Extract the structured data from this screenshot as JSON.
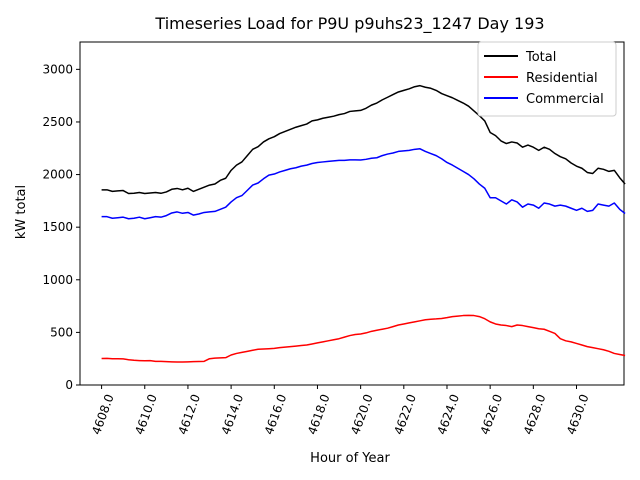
{
  "chart_data": {
    "type": "line",
    "title": "Timeseries Load for P9U p9uhs23_1247  Day 193",
    "xlabel": "Hour of Year",
    "ylabel": "kW total",
    "xlim": [
      4607.0,
      4632.2
    ],
    "ylim": [
      0,
      3260
    ],
    "xticks": [
      4608,
      4610,
      4612,
      4614,
      4616,
      4618,
      4620,
      4622,
      4624,
      4626,
      4628,
      4630
    ],
    "xtick_labels": [
      "4608.0",
      "4610.0",
      "4612.0",
      "4614.0",
      "4616.0",
      "4618.0",
      "4620.0",
      "4622.0",
      "4624.0",
      "4626.0",
      "4628.0",
      "4630.0"
    ],
    "yticks": [
      0,
      500,
      1000,
      1500,
      2000,
      2500,
      3000
    ],
    "ytick_labels": [
      "0",
      "500",
      "1000",
      "1500",
      "2000",
      "2500",
      "3000"
    ],
    "legend_position": "top-right",
    "x_start": 4608.0,
    "x_step": 0.25,
    "series": [
      {
        "name": "Total",
        "color": "#000000",
        "values": [
          1855,
          1855,
          1840,
          1845,
          1848,
          1820,
          1822,
          1830,
          1820,
          1825,
          1830,
          1822,
          1835,
          1860,
          1868,
          1855,
          1870,
          1840,
          1860,
          1880,
          1900,
          1910,
          1945,
          1965,
          2040,
          2090,
          2120,
          2180,
          2240,
          2265,
          2310,
          2340,
          2360,
          2390,
          2410,
          2430,
          2450,
          2465,
          2480,
          2510,
          2520,
          2535,
          2545,
          2555,
          2570,
          2580,
          2600,
          2605,
          2610,
          2630,
          2660,
          2680,
          2710,
          2735,
          2760,
          2785,
          2800,
          2815,
          2835,
          2845,
          2830,
          2820,
          2800,
          2770,
          2750,
          2730,
          2705,
          2680,
          2650,
          2605,
          2560,
          2510,
          2400,
          2370,
          2320,
          2295,
          2310,
          2300,
          2260,
          2280,
          2260,
          2230,
          2260,
          2240,
          2200,
          2170,
          2150,
          2110,
          2080,
          2060,
          2020,
          2010,
          2060,
          2050,
          2030,
          2040,
          1970,
          1910
        ]
      },
      {
        "name": "Residential",
        "color": "#ff0000",
        "values": [
          252,
          253,
          250,
          250,
          248,
          240,
          235,
          232,
          230,
          232,
          225,
          225,
          222,
          220,
          218,
          218,
          220,
          222,
          223,
          225,
          250,
          255,
          258,
          260,
          285,
          300,
          310,
          320,
          330,
          340,
          342,
          345,
          348,
          355,
          360,
          365,
          370,
          375,
          380,
          390,
          400,
          410,
          420,
          430,
          440,
          455,
          470,
          480,
          485,
          495,
          510,
          520,
          530,
          540,
          555,
          570,
          580,
          590,
          600,
          610,
          620,
          625,
          628,
          632,
          640,
          650,
          655,
          660,
          662,
          660,
          650,
          630,
          600,
          580,
          570,
          565,
          555,
          570,
          565,
          555,
          545,
          535,
          530,
          510,
          490,
          440,
          420,
          410,
          395,
          380,
          365,
          355,
          345,
          335,
          320,
          300,
          290,
          280
        ]
      },
      {
        "name": "Commercial",
        "color": "#0000ff",
        "values": [
          1600,
          1600,
          1585,
          1590,
          1595,
          1580,
          1585,
          1595,
          1580,
          1590,
          1600,
          1595,
          1610,
          1635,
          1645,
          1632,
          1640,
          1615,
          1625,
          1640,
          1645,
          1650,
          1670,
          1690,
          1740,
          1780,
          1800,
          1850,
          1900,
          1920,
          1960,
          1995,
          2005,
          2025,
          2040,
          2055,
          2065,
          2080,
          2090,
          2105,
          2115,
          2120,
          2125,
          2130,
          2135,
          2135,
          2140,
          2140,
          2138,
          2145,
          2155,
          2160,
          2180,
          2195,
          2205,
          2220,
          2225,
          2230,
          2240,
          2245,
          2220,
          2200,
          2180,
          2150,
          2115,
          2090,
          2060,
          2030,
          2000,
          1960,
          1910,
          1870,
          1780,
          1780,
          1750,
          1720,
          1760,
          1740,
          1690,
          1720,
          1710,
          1680,
          1730,
          1720,
          1700,
          1710,
          1700,
          1680,
          1660,
          1680,
          1650,
          1660,
          1720,
          1710,
          1700,
          1730,
          1670,
          1630
        ]
      }
    ]
  }
}
